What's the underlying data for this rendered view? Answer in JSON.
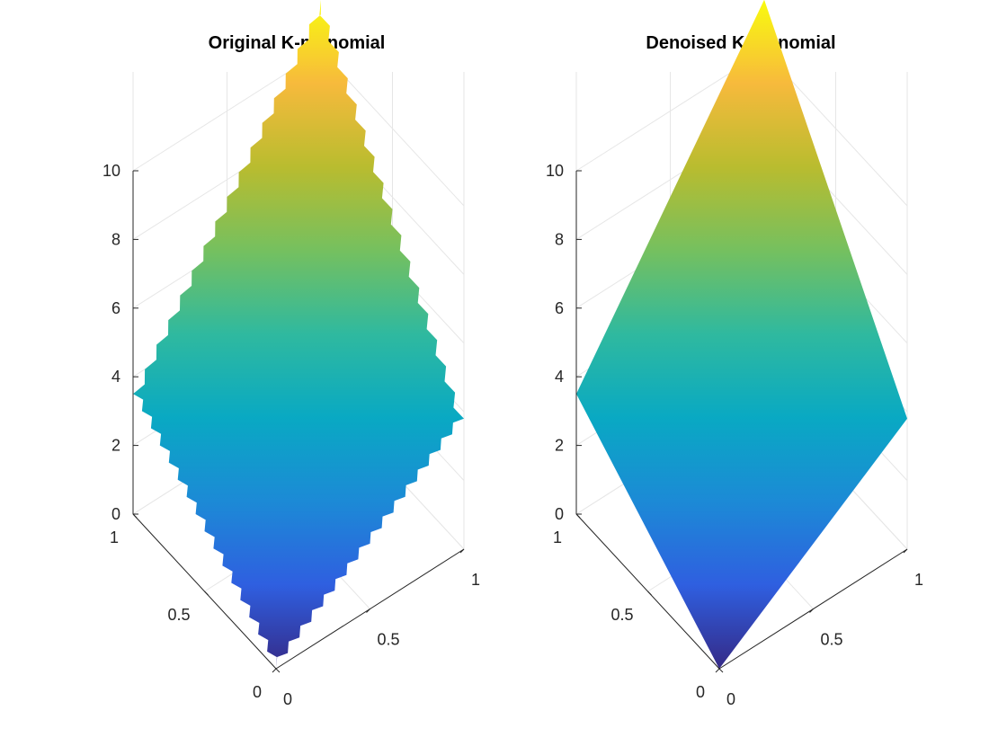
{
  "chart_data": [
    {
      "type": "surface",
      "title": "Original K-monomial",
      "surface": "noisy",
      "x_ticks": [
        "0",
        "0.5",
        "1"
      ],
      "y_ticks": [
        "0",
        "0.5",
        "1"
      ],
      "z_ticks": [
        "0",
        "2",
        "4",
        "6",
        "8",
        "10"
      ],
      "xlim": [
        0,
        1
      ],
      "ylim": [
        0,
        1
      ],
      "zlim": [
        0,
        11
      ],
      "z_corners": {
        "x0y0": 0,
        "x1y0": 3.8,
        "x0y1": 3.5,
        "x1y1": 11.5
      },
      "colormap": "parula",
      "grid": true
    },
    {
      "type": "surface",
      "title": "Denoised K-monomial",
      "surface": "smooth",
      "x_ticks": [
        "0",
        "0.5",
        "1"
      ],
      "y_ticks": [
        "0",
        "0.5",
        "1"
      ],
      "z_ticks": [
        "0",
        "2",
        "4",
        "6",
        "8",
        "10"
      ],
      "xlim": [
        0,
        1
      ],
      "ylim": [
        0,
        1
      ],
      "zlim": [
        0,
        11
      ],
      "z_corners": {
        "x0y0": 0,
        "x1y0": 3.8,
        "x0y1": 3.5,
        "x1y1": 11.5
      },
      "colormap": "parula",
      "grid": true
    }
  ],
  "colors": {
    "parula": [
      "#352a87",
      "#2f5fe0",
      "#1c8ad6",
      "#09a9c3",
      "#2fb99f",
      "#75c05f",
      "#b9bc2f",
      "#f7ba3c",
      "#f9fb0e"
    ]
  }
}
